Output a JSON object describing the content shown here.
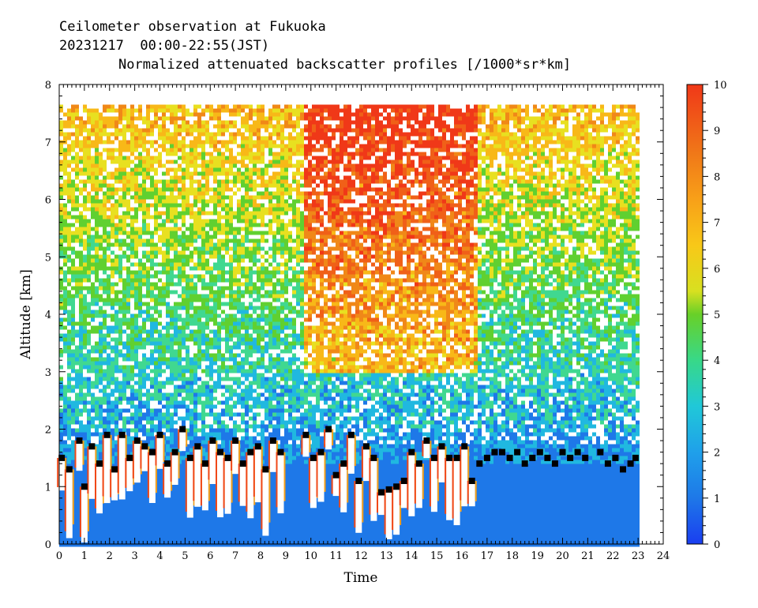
{
  "title": {
    "line1": "Ceilometer observation at Fukuoka",
    "line2": "20231217  00:00-22:55(JST)",
    "line3": "Normalized attenuated backscatter profiles [/1000*sr*km]"
  },
  "chart_data": {
    "type": "heatmap",
    "title": "Normalized attenuated backscatter profiles [/1000*sr*km]",
    "xlabel": "Time",
    "ylabel": "Altitude [km]",
    "xlim": [
      0,
      24
    ],
    "ylim": [
      0,
      8
    ],
    "x_ticks": [
      "0",
      "1",
      "2",
      "3",
      "4",
      "5",
      "6",
      "7",
      "8",
      "9",
      "10",
      "11",
      "12",
      "13",
      "14",
      "15",
      "16",
      "17",
      "18",
      "19",
      "20",
      "21",
      "22",
      "23",
      "24"
    ],
    "y_ticks": [
      "0",
      "1",
      "2",
      "3",
      "4",
      "5",
      "6",
      "7",
      "8"
    ],
    "colorbar": {
      "range": [
        0,
        10
      ],
      "ticks": [
        "0",
        "1",
        "2",
        "3",
        "4",
        "5",
        "6",
        "7",
        "8",
        "9",
        "10"
      ],
      "colors": [
        "#1a3ef0",
        "#1e78e8",
        "#20b8e0",
        "#40d890",
        "#60d030",
        "#e8e020",
        "#f8b818",
        "#f08818",
        "#f06018",
        "#f03818"
      ]
    },
    "data_coverage": {
      "x_range": [
        0,
        22.92
      ],
      "y_range": [
        0,
        7.65
      ]
    },
    "marker_series": {
      "name": "",
      "x": [
        0.1,
        0.4,
        0.8,
        1.0,
        1.3,
        1.6,
        1.9,
        2.2,
        2.5,
        2.8,
        3.1,
        3.4,
        3.7,
        4.0,
        4.3,
        4.6,
        4.9,
        5.2,
        5.5,
        5.8,
        6.1,
        6.4,
        6.7,
        7.0,
        7.3,
        7.6,
        7.9,
        8.2,
        8.5,
        8.8,
        9.8,
        10.1,
        10.4,
        10.7,
        11.0,
        11.3,
        11.6,
        11.9,
        12.2,
        12.5,
        12.8,
        13.1,
        13.4,
        13.7,
        14.0,
        14.3,
        14.6,
        14.9,
        15.2,
        15.5,
        15.8,
        16.1,
        16.4,
        16.7,
        17.0,
        17.3,
        17.6,
        17.9,
        18.2,
        18.5,
        18.8,
        19.1,
        19.4,
        19.7,
        20.0,
        20.3,
        20.6,
        20.9,
        21.5,
        21.8,
        22.1,
        22.4,
        22.7,
        22.9
      ],
      "y": [
        1.5,
        1.3,
        1.8,
        1.0,
        1.7,
        1.4,
        1.9,
        1.3,
        1.9,
        1.5,
        1.8,
        1.7,
        1.6,
        1.9,
        1.4,
        1.6,
        2.0,
        1.5,
        1.7,
        1.4,
        1.8,
        1.6,
        1.5,
        1.8,
        1.4,
        1.6,
        1.7,
        1.3,
        1.8,
        1.6,
        1.9,
        1.5,
        1.6,
        2.0,
        1.2,
        1.4,
        1.9,
        1.1,
        1.7,
        1.5,
        0.9,
        0.95,
        1.0,
        1.1,
        1.6,
        1.4,
        1.8,
        1.5,
        1.7,
        1.5,
        1.5,
        1.7,
        1.1,
        1.4,
        1.5,
        1.6,
        1.6,
        1.5,
        1.6,
        1.4,
        1.5,
        1.6,
        1.5,
        1.4,
        1.6,
        1.5,
        1.6,
        1.5,
        1.6,
        1.4,
        1.5,
        1.3,
        1.4,
        1.5
      ]
    },
    "grid": false
  }
}
